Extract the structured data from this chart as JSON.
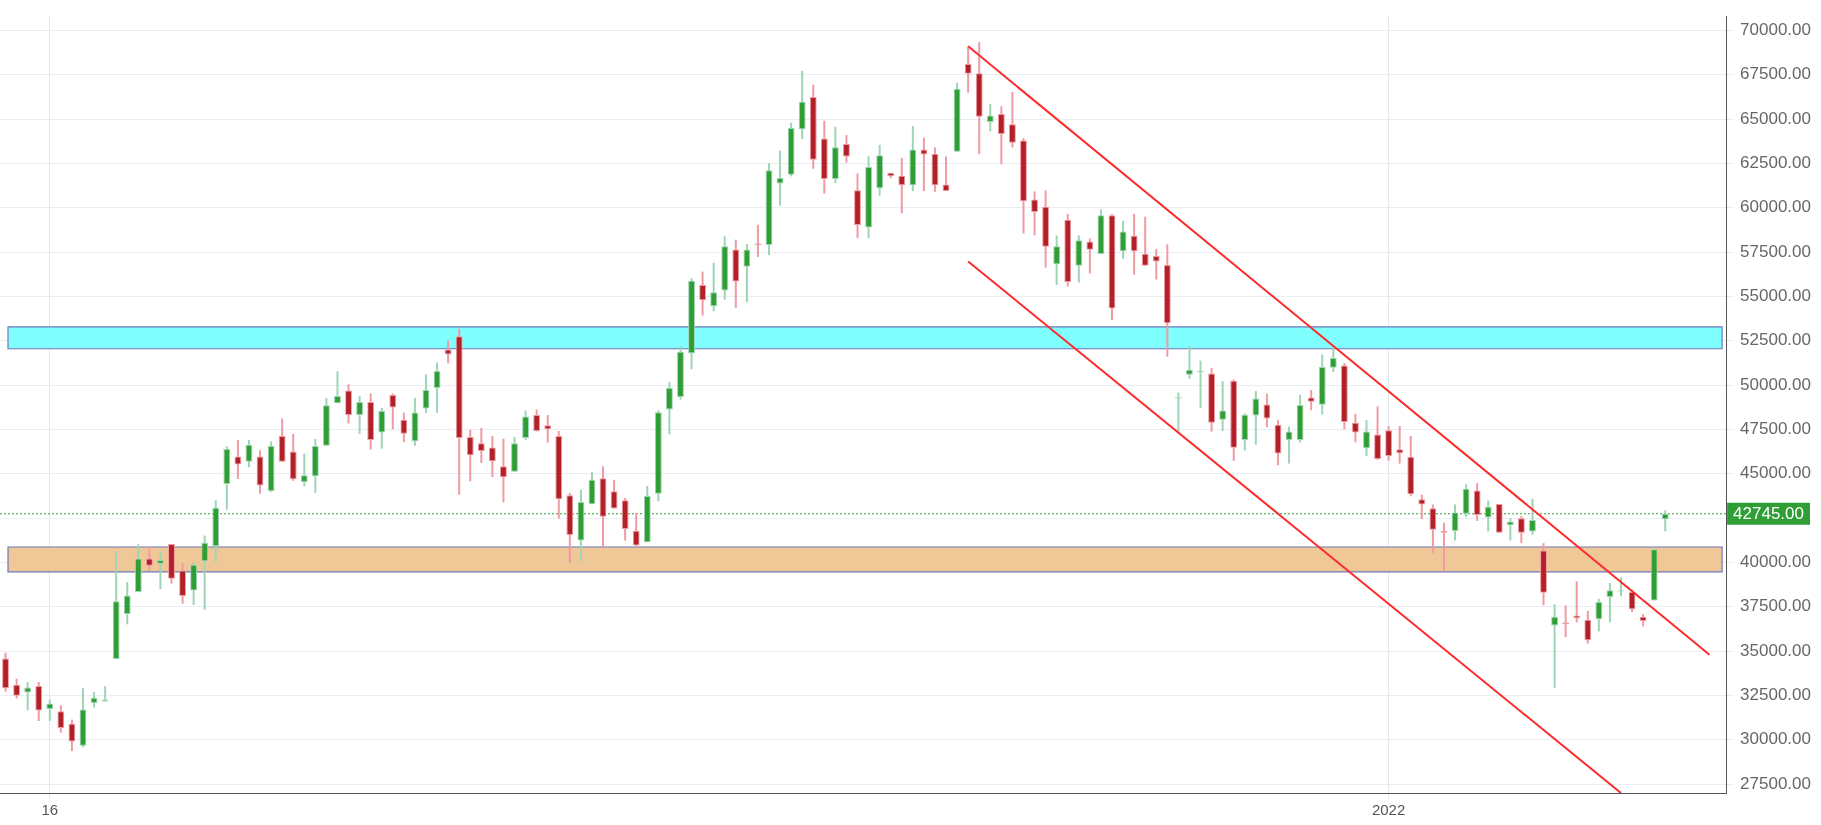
{
  "chart_data": {
    "type": "candlestick",
    "categories": [
      null,
      null,
      null,
      null,
      "16",
      null,
      null,
      null,
      null,
      null,
      null,
      null,
      null,
      null,
      null,
      null,
      null,
      null,
      null,
      null,
      null,
      null,
      null,
      null,
      null,
      null,
      null,
      null,
      null,
      null,
      null,
      null,
      null,
      null,
      null,
      null,
      null,
      null,
      null,
      null,
      null,
      null,
      null,
      null,
      null,
      null,
      null,
      null,
      null,
      null,
      null,
      null,
      null,
      null,
      null,
      null,
      null,
      null,
      null,
      null,
      null,
      null,
      null,
      null,
      null,
      null,
      null,
      null,
      null,
      null,
      null,
      null,
      null,
      null,
      null,
      null,
      null,
      null,
      null,
      null,
      null,
      null,
      null,
      null,
      null,
      null,
      null,
      null,
      null,
      null,
      null,
      null,
      null,
      null,
      null,
      null,
      null,
      null,
      null,
      null,
      null,
      null,
      null,
      null,
      null,
      null,
      null,
      null,
      null,
      null,
      null,
      null,
      null,
      null,
      null,
      null,
      null,
      null,
      null,
      null,
      null,
      null,
      null,
      null,
      null,
      "2022",
      null,
      null,
      null,
      null,
      null,
      null,
      null,
      null,
      null,
      null,
      null,
      null,
      null,
      null,
      null,
      null,
      null,
      null,
      null,
      null,
      null,
      null,
      null,
      null,
      null,
      null,
      null,
      null,
      null,
      null
    ],
    "ohlc": [
      [
        34580,
        34910,
        32710,
        32900
      ],
      [
        33100,
        33450,
        32330,
        32480
      ],
      [
        32660,
        33260,
        31650,
        32950
      ],
      [
        33040,
        33260,
        31060,
        31650
      ],
      [
        31740,
        32270,
        31060,
        32040
      ],
      [
        31610,
        31940,
        30400,
        30660
      ],
      [
        30900,
        31140,
        29360,
        29910
      ],
      [
        29670,
        32930,
        29580,
        31710
      ],
      [
        32070,
        32700,
        31820,
        32370
      ],
      [
        32160,
        33030,
        32160,
        32270
      ],
      [
        34550,
        40640,
        34550,
        37810
      ],
      [
        37100,
        38890,
        36510,
        38140
      ],
      [
        38340,
        41020,
        38340,
        40220
      ],
      [
        40220,
        40880,
        39520,
        39810
      ],
      [
        39920,
        40640,
        38490,
        40140
      ],
      [
        41040,
        41040,
        38800,
        39080
      ],
      [
        39540,
        39960,
        37670,
        38110
      ],
      [
        38420,
        40000,
        37610,
        39870
      ],
      [
        40070,
        41520,
        37340,
        41110
      ],
      [
        40910,
        43500,
        40030,
        43090
      ],
      [
        44430,
        46560,
        42970,
        46400
      ],
      [
        45970,
        46910,
        44710,
        45520
      ],
      [
        45680,
        46910,
        45370,
        46630
      ],
      [
        45970,
        46320,
        43880,
        44340
      ],
      [
        44030,
        46820,
        43970,
        46560
      ],
      [
        47130,
        48120,
        45680,
        45680
      ],
      [
        46250,
        47240,
        44600,
        44690
      ],
      [
        44530,
        46140,
        44290,
        44910
      ],
      [
        44860,
        46960,
        43920,
        46560
      ],
      [
        46580,
        49280,
        46580,
        48870
      ],
      [
        48980,
        50780,
        48980,
        49390
      ],
      [
        49700,
        50050,
        47840,
        48320
      ],
      [
        48320,
        49390,
        47240,
        49040
      ],
      [
        49040,
        49530,
        46360,
        46910
      ],
      [
        47330,
        48710,
        46410,
        48540
      ],
      [
        49440,
        49530,
        47510,
        48740
      ],
      [
        48050,
        48450,
        46780,
        47260
      ],
      [
        46840,
        49280,
        46580,
        48450
      ],
      [
        48680,
        50600,
        48430,
        49720
      ],
      [
        49830,
        51280,
        48440,
        50800
      ],
      [
        52010,
        52510,
        51230,
        51730
      ],
      [
        52750,
        53180,
        43820,
        47020
      ],
      [
        47080,
        47490,
        44570,
        46040
      ],
      [
        46720,
        47580,
        45610,
        46280
      ],
      [
        46480,
        47130,
        44810,
        45700
      ],
      [
        45420,
        46980,
        43380,
        44810
      ],
      [
        45120,
        47080,
        45120,
        46720
      ],
      [
        47020,
        48570,
        46890,
        48230
      ],
      [
        48320,
        48620,
        47380,
        47410
      ],
      [
        47730,
        48310,
        46760,
        47510
      ],
      [
        47130,
        47410,
        42480,
        43560
      ],
      [
        43790,
        43920,
        39960,
        41550
      ],
      [
        41240,
        44100,
        40050,
        43410
      ],
      [
        43280,
        45090,
        43280,
        44660
      ],
      [
        44750,
        45420,
        40870,
        42580
      ],
      [
        44010,
        44660,
        43040,
        43040
      ],
      [
        43510,
        43640,
        41240,
        41890
      ],
      [
        41780,
        42800,
        40900,
        40960
      ],
      [
        41140,
        44310,
        41140,
        43750
      ],
      [
        43880,
        48570,
        43450,
        48470
      ],
      [
        48630,
        50180,
        47230,
        49830
      ],
      [
        49330,
        52210,
        49180,
        51880
      ],
      [
        51800,
        56010,
        50890,
        55890
      ],
      [
        55650,
        56400,
        53920,
        54780
      ],
      [
        54440,
        56900,
        54160,
        55240
      ],
      [
        55340,
        58390,
        54820,
        57830
      ],
      [
        57640,
        58200,
        54350,
        55840
      ],
      [
        56670,
        57960,
        54670,
        57640
      ],
      [
        57980,
        59040,
        57230,
        57900
      ],
      [
        57900,
        62520,
        57330,
        62110
      ],
      [
        61360,
        63220,
        60120,
        61680
      ],
      [
        61860,
        64800,
        61770,
        64490
      ],
      [
        64430,
        67720,
        63870,
        65980
      ],
      [
        66240,
        66940,
        62200,
        62700
      ],
      [
        63910,
        64900,
        60800,
        61620
      ],
      [
        61620,
        64560,
        61400,
        63410
      ],
      [
        63590,
        64100,
        62550,
        62890
      ],
      [
        60980,
        61930,
        58290,
        59030
      ],
      [
        58880,
        62900,
        58290,
        62300
      ],
      [
        61100,
        63550,
        60680,
        62960
      ],
      [
        61970,
        61970,
        61670,
        61770
      ],
      [
        61800,
        62810,
        59690,
        61270
      ],
      [
        61270,
        64610,
        60940,
        63290
      ],
      [
        63290,
        63950,
        60940,
        63000
      ],
      [
        63050,
        63400,
        60900,
        61270
      ],
      [
        61310,
        62890,
        60940,
        60940
      ],
      [
        63160,
        67040,
        63160,
        66710
      ],
      [
        68110,
        69100,
        66490,
        67560
      ],
      [
        67590,
        69340,
        63030,
        65130
      ],
      [
        64840,
        65850,
        64320,
        65200
      ],
      [
        65280,
        65720,
        62450,
        64160
      ],
      [
        64710,
        66530,
        63400,
        63660
      ],
      [
        63790,
        63920,
        58550,
        60370
      ],
      [
        60460,
        60920,
        58440,
        59760
      ],
      [
        60060,
        60980,
        56620,
        57800
      ],
      [
        56820,
        58440,
        55650,
        57830
      ],
      [
        59320,
        59650,
        55550,
        55810
      ],
      [
        56730,
        58440,
        55790,
        58160
      ],
      [
        58090,
        58270,
        56290,
        57630
      ],
      [
        57390,
        59910,
        57390,
        59580
      ],
      [
        59580,
        59650,
        53660,
        54320
      ],
      [
        57540,
        59270,
        57120,
        58660
      ],
      [
        58420,
        59650,
        56230,
        57540
      ],
      [
        57410,
        59500,
        56730,
        56730
      ],
      [
        57280,
        57670,
        55960,
        56970
      ],
      [
        56770,
        57940,
        51600,
        53490
      ],
      [
        49250,
        49580,
        47250,
        49320
      ],
      [
        50590,
        52210,
        50350,
        50870
      ],
      [
        50720,
        51380,
        48700,
        50790
      ],
      [
        50650,
        50960,
        47380,
        47870
      ],
      [
        48040,
        50220,
        47410,
        48570
      ],
      [
        50240,
        50320,
        45720,
        46460
      ],
      [
        46900,
        48400,
        46310,
        48330
      ],
      [
        48290,
        49670,
        46640,
        49250
      ],
      [
        48900,
        49520,
        47620,
        48110
      ],
      [
        47760,
        48020,
        45480,
        46140
      ],
      [
        46900,
        47660,
        45570,
        47380
      ],
      [
        46900,
        49450,
        46770,
        48880
      ],
      [
        49300,
        49720,
        48580,
        49060
      ],
      [
        48890,
        51720,
        48340,
        51020
      ],
      [
        50980,
        52120,
        50740,
        51530
      ],
      [
        51110,
        51240,
        47510,
        47920
      ],
      [
        47880,
        48380,
        46770,
        47330
      ],
      [
        46440,
        48030,
        46000,
        47380
      ],
      [
        47210,
        48800,
        45780,
        45830
      ],
      [
        47450,
        47690,
        45740,
        46000
      ],
      [
        46380,
        47690,
        45570,
        46160
      ],
      [
        45960,
        47140,
        43730,
        43840
      ],
      [
        43560,
        43820,
        42440,
        43270
      ],
      [
        43050,
        43270,
        40540,
        41850
      ],
      [
        41790,
        42250,
        39480,
        41680
      ],
      [
        41770,
        43270,
        41240,
        42810
      ],
      [
        42750,
        44410,
        42570,
        44150
      ],
      [
        44060,
        44470,
        42340,
        42680
      ],
      [
        42530,
        43490,
        41750,
        43140
      ],
      [
        43300,
        43300,
        41680,
        41680
      ],
      [
        42100,
        42490,
        41240,
        42310
      ],
      [
        42490,
        42620,
        41090,
        41680
      ],
      [
        41750,
        43580,
        41570,
        42400
      ],
      [
        40680,
        41090,
        37580,
        38290
      ],
      [
        36440,
        37640,
        32930,
        36940
      ],
      [
        36620,
        37580,
        35790,
        36530
      ],
      [
        37010,
        38930,
        36620,
        36860
      ],
      [
        36770,
        37270,
        35430,
        35610
      ],
      [
        36790,
        37950,
        36110,
        37770
      ],
      [
        38050,
        38840,
        36620,
        38430
      ],
      [
        38360,
        39170,
        38100,
        38430
      ],
      [
        38340,
        38470,
        37210,
        37360
      ],
      [
        36940,
        37090,
        36400,
        36700
      ],
      [
        37860,
        40740,
        37860,
        40740
      ],
      [
        42440,
        42930,
        41750,
        42745
      ],
      null,
      null,
      null,
      null,
      null
    ],
    "series": [
      {
        "type": "line",
        "color": "#ff2a2a",
        "values": [
          null,
          null,
          null,
          null,
          null,
          null,
          null,
          null,
          null,
          null,
          null,
          null,
          null,
          null,
          null,
          null,
          null,
          null,
          null,
          null,
          null,
          null,
          null,
          null,
          null,
          null,
          null,
          null,
          null,
          null,
          null,
          null,
          null,
          null,
          null,
          null,
          null,
          null,
          null,
          null,
          null,
          null,
          null,
          null,
          null,
          null,
          null,
          null,
          null,
          null,
          null,
          null,
          null,
          null,
          null,
          null,
          null,
          null,
          null,
          null,
          null,
          null,
          null,
          null,
          null,
          null,
          null,
          null,
          null,
          null,
          null,
          null,
          null,
          null,
          null,
          null,
          null,
          null,
          null,
          null,
          null,
          null,
          null,
          null,
          null,
          null,
          null,
          69100,
          null,
          null,
          null,
          null,
          null,
          null,
          null,
          null,
          null,
          null,
          null,
          null,
          null,
          null,
          null,
          null,
          null,
          null,
          null,
          null,
          null,
          null,
          null,
          null,
          null,
          null,
          null,
          null,
          null,
          null,
          null,
          null,
          null,
          null,
          null,
          null,
          null,
          null,
          null,
          null,
          null,
          null,
          null,
          null,
          null,
          null,
          null,
          null,
          null,
          null,
          null,
          null,
          null,
          null,
          null,
          null,
          null,
          null,
          null,
          null,
          null,
          null,
          null,
          null,
          null,
          null,
          34800,
          null
        ]
      },
      {
        "type": "line",
        "color": "#ff2a2a",
        "values": [
          null,
          null,
          null,
          null,
          null,
          null,
          null,
          null,
          null,
          null,
          null,
          null,
          null,
          null,
          null,
          null,
          null,
          null,
          null,
          null,
          null,
          null,
          null,
          null,
          null,
          null,
          null,
          null,
          null,
          null,
          null,
          null,
          null,
          null,
          null,
          null,
          null,
          null,
          null,
          null,
          null,
          null,
          null,
          null,
          null,
          null,
          null,
          null,
          null,
          null,
          null,
          null,
          null,
          null,
          null,
          null,
          null,
          null,
          null,
          null,
          null,
          null,
          null,
          null,
          null,
          null,
          null,
          null,
          null,
          null,
          null,
          null,
          null,
          null,
          null,
          null,
          null,
          null,
          null,
          null,
          null,
          null,
          null,
          null,
          null,
          null,
          null,
          56970,
          null,
          null,
          null,
          null,
          null,
          null,
          null,
          null,
          null,
          null,
          null,
          null,
          null,
          null,
          null,
          null,
          null,
          null,
          null,
          null,
          null,
          null,
          null,
          null,
          null,
          null,
          null,
          null,
          null,
          null,
          null,
          null,
          null,
          null,
          null,
          null,
          null,
          null,
          null,
          null,
          null,
          null,
          null,
          null,
          null,
          null,
          null,
          null,
          null,
          null,
          null,
          null,
          null,
          null,
          null,
          null,
          null,
          null,
          27000,
          null,
          null,
          null,
          null,
          null,
          null,
          null,
          null,
          null
        ]
      }
    ],
    "ylim": [
      27000,
      70800
    ],
    "yticks": [
      {
        "value": 27500,
        "label": "27500.00"
      },
      {
        "value": 30000,
        "label": "30000.00"
      },
      {
        "value": 32500,
        "label": "32500.00"
      },
      {
        "value": 35000,
        "label": "35000.00"
      },
      {
        "value": 37500,
        "label": "37500.00"
      },
      {
        "value": 40000,
        "label": "40000.00"
      },
      {
        "value": 42500,
        "label": null
      },
      {
        "value": 45000,
        "label": "45000.00"
      },
      {
        "value": 47500,
        "label": "47500.00"
      },
      {
        "value": 50000,
        "label": "50000.00"
      },
      {
        "value": 52500,
        "label": "52500.00"
      },
      {
        "value": 55000,
        "label": "55000.00"
      },
      {
        "value": 57500,
        "label": "57500.00"
      },
      {
        "value": 60000,
        "label": "60000.00"
      },
      {
        "value": 62500,
        "label": "62500.00"
      },
      {
        "value": 65000,
        "label": "65000.00"
      },
      {
        "value": 67500,
        "label": "67500.00"
      },
      {
        "value": 70000,
        "label": "70000.00"
      }
    ],
    "bands": [
      {
        "axis": "y",
        "from": 52050,
        "to": 53280,
        "color": "#80ffff"
      },
      {
        "axis": "y",
        "from": 39470,
        "to": 40870,
        "color": "#f0c898"
      }
    ],
    "ref_lines": [
      {
        "axis": "y",
        "value": 42745,
        "label": "42745.00",
        "color": "#2e9e35",
        "line_style": "dotted"
      }
    ],
    "grid": true
  }
}
